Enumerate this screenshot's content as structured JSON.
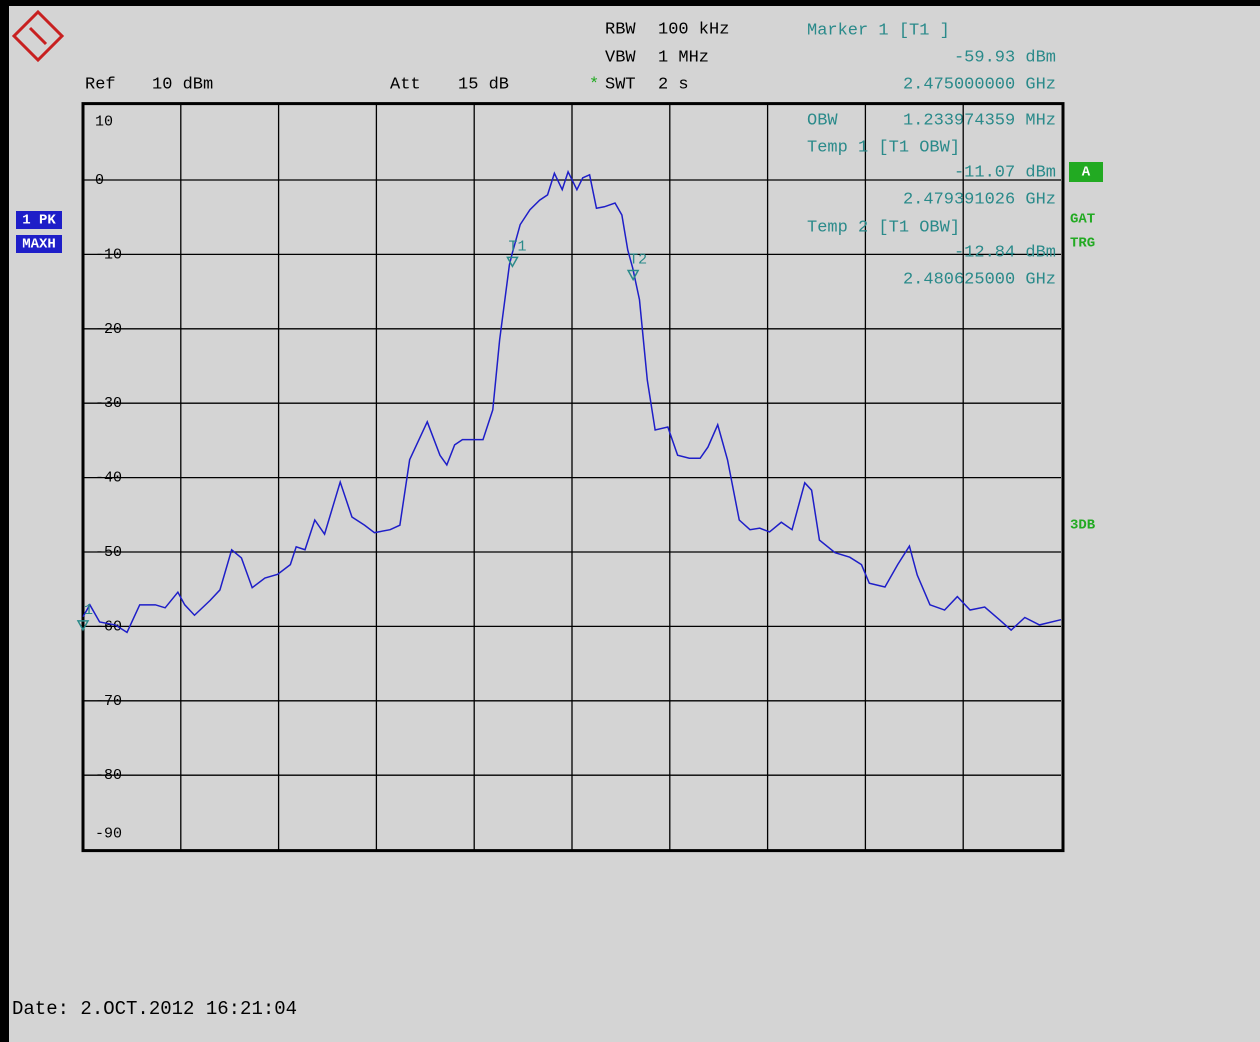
{
  "chart_data": {
    "type": "line",
    "header": {
      "rbw_label": "RBW",
      "rbw": "100 kHz",
      "vbw_label": "VBW",
      "vbw": "1 MHz",
      "swt_flag": "*",
      "swt_label": "SWT",
      "swt": "2 s",
      "ref_label": "Ref",
      "ref": "10 dBm",
      "att_label": "Att",
      "att": "15 dB",
      "obw_label": "OBW",
      "obw": "1.233974359 MHz"
    },
    "trace_badges": [
      "1 PK",
      "MAXH"
    ],
    "status_box": "A",
    "status_flags": [
      "GAT",
      "TRG"
    ],
    "side_note": "3DB",
    "date": "Date: 2.OCT.2012  16:21:04",
    "xlim": [
      2.475,
      2.485
    ],
    "ylim": [
      -90,
      10
    ],
    "yticks": [
      10,
      0,
      -10,
      -20,
      -30,
      -40,
      -50,
      -60,
      -70,
      -80,
      -90
    ],
    "grid": true,
    "series": [
      {
        "name": "1 PK",
        "color": "#1e1ec8",
        "x": [
          2.475,
          2.47507,
          2.47517,
          2.47533,
          2.47545,
          2.47558,
          2.47574,
          2.47584,
          2.47597,
          2.47604,
          2.47614,
          2.4763,
          2.4764,
          2.47652,
          2.47662,
          2.47673,
          2.47686,
          2.47699,
          2.47712,
          2.47718,
          2.47727,
          2.47737,
          2.47747,
          2.47763,
          2.47775,
          2.47788,
          2.47798,
          2.47814,
          2.47824,
          2.47834,
          2.47852,
          2.47865,
          2.47872,
          2.4788,
          2.47888,
          2.47898,
          2.47909,
          2.47919,
          2.47926,
          2.47936,
          2.47939,
          2.47947,
          2.47957,
          2.47967,
          2.47975,
          2.47982,
          2.4799,
          2.47996,
          2.48005,
          2.48011,
          2.48018,
          2.48025,
          2.48033,
          2.48044,
          2.48051,
          2.48057,
          2.48062,
          2.48069,
          2.48077,
          2.48085,
          2.48098,
          2.48108,
          2.4812,
          2.48131,
          2.48139,
          2.48149,
          2.48159,
          2.48171,
          2.48182,
          2.48192,
          2.48202,
          2.48214,
          2.48225,
          2.48238,
          2.48245,
          2.48253,
          2.48269,
          2.48284,
          2.48296,
          2.48304,
          2.4832,
          2.48333,
          2.48345,
          2.48353,
          2.48366,
          2.48381,
          2.48394,
          2.48407,
          2.48422,
          2.48437,
          2.48449,
          2.48463,
          2.48478,
          2.485
        ],
        "values": [
          -58.7,
          -57.1,
          -59.4,
          -59.8,
          -60.8,
          -57.1,
          -57.1,
          -57.5,
          -55.4,
          -57.1,
          -58.5,
          -56.5,
          -55.1,
          -49.7,
          -50.8,
          -54.8,
          -53.5,
          -53.0,
          -51.7,
          -49.3,
          -49.7,
          -45.7,
          -47.6,
          -40.6,
          -45.3,
          -46.4,
          -47.4,
          -47.0,
          -46.4,
          -37.6,
          -32.5,
          -37.0,
          -38.3,
          -35.6,
          -34.9,
          -34.9,
          -34.9,
          -30.9,
          -21.5,
          -11.4,
          -9.8,
          -6.0,
          -4.0,
          -2.7,
          -2.0,
          0.9,
          -1.3,
          1.1,
          -1.3,
          0.3,
          0.7,
          -3.8,
          -3.6,
          -3.1,
          -4.7,
          -9.4,
          -11.8,
          -16.1,
          -26.9,
          -33.6,
          -33.2,
          -37.0,
          -37.4,
          -37.4,
          -35.9,
          -32.9,
          -37.6,
          -45.7,
          -47.0,
          -46.8,
          -47.3,
          -46.0,
          -47.0,
          -40.7,
          -41.7,
          -48.4,
          -50.1,
          -50.7,
          -51.7,
          -54.2,
          -54.7,
          -51.7,
          -49.2,
          -53.1,
          -57.1,
          -57.8,
          -56.0,
          -57.8,
          -57.4,
          -59.1,
          -60.5,
          -58.8,
          -59.8,
          -59.1
        ]
      }
    ],
    "markers": [
      {
        "title": "Marker 1 [T1 ]",
        "label": "1",
        "x": 2.475,
        "x_label": "2.475000000 GHz",
        "y": -59.93,
        "y_label": "-59.93 dBm"
      },
      {
        "title": "Temp 1 [T1 OBW]",
        "label": "T1",
        "x": 2.479391026,
        "x_label": "2.479391026 GHz",
        "y": -11.07,
        "y_label": "-11.07 dBm"
      },
      {
        "title": "Temp 2 [T1 OBW]",
        "label": "T2",
        "x": 2.480625,
        "x_label": "2.480625000 GHz",
        "y": -12.84,
        "y_label": "-12.84 dBm"
      }
    ]
  }
}
